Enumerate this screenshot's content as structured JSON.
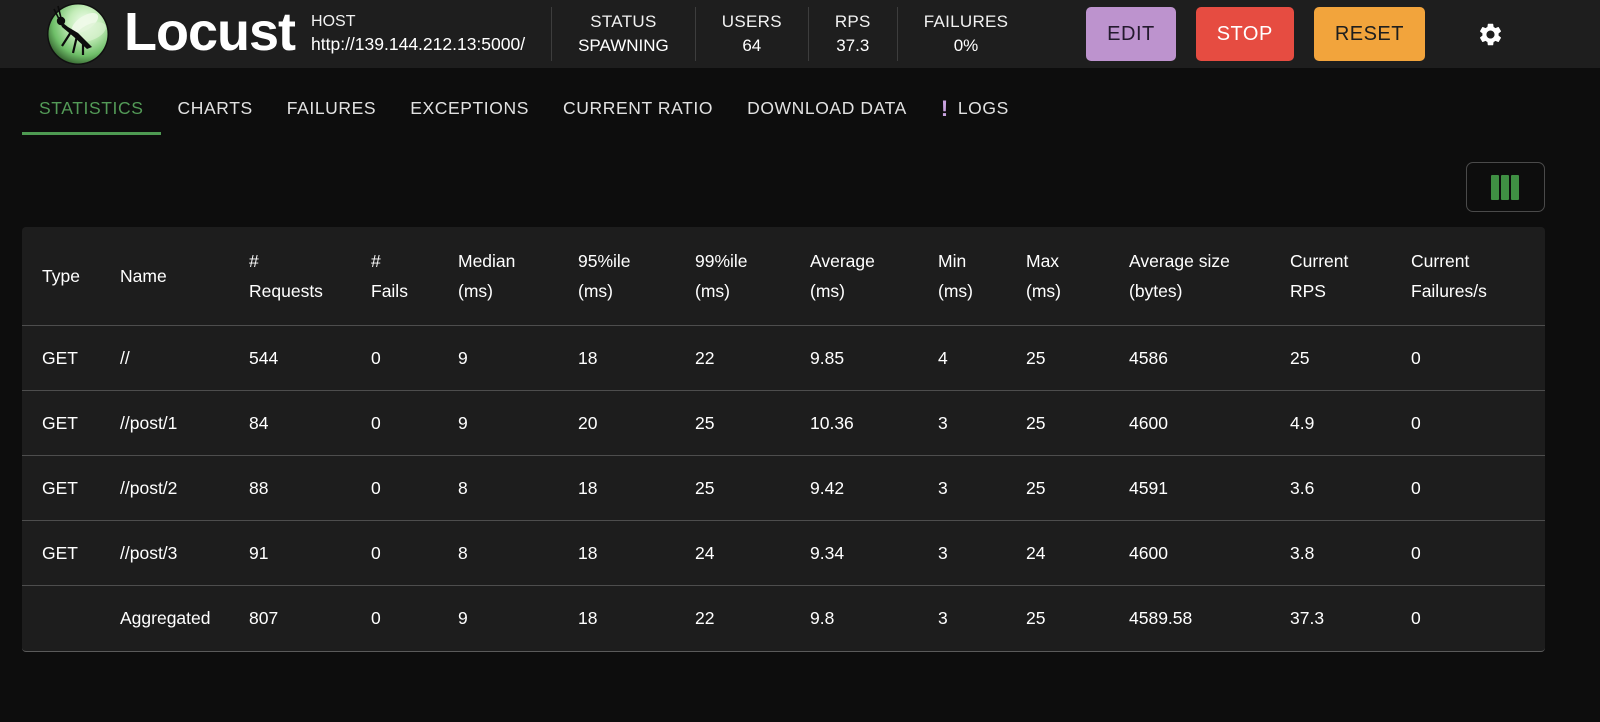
{
  "colors": {
    "accent_green": "#4e9a52",
    "edit_button_bg": "#bd93ce",
    "edit_button_fg": "#241a2e",
    "stop_button_bg": "#e64c41",
    "stop_button_fg": "#ffffff",
    "reset_button_bg": "#f2a43c",
    "reset_button_fg": "#1e1e1e",
    "logs_badge": "#c9a3e0",
    "columns_icon_green": "#3f8f43"
  },
  "header": {
    "logo_icon": "locust-logo",
    "title": "Locust",
    "host": {
      "label": "HOST",
      "value": "http://139.144.212.13:5000/"
    },
    "stats": [
      {
        "label": "STATUS",
        "value": "SPAWNING"
      },
      {
        "label": "USERS",
        "value": "64"
      },
      {
        "label": "RPS",
        "value": "37.3"
      },
      {
        "label": "FAILURES",
        "value": "0%"
      }
    ],
    "buttons": [
      {
        "label": "EDIT",
        "bg": "#bd93ce",
        "fg": "#241a2e",
        "name": "edit-button"
      },
      {
        "label": "STOP",
        "bg": "#e64c41",
        "fg": "#ffffff",
        "name": "stop-button"
      },
      {
        "label": "RESET",
        "bg": "#f2a43c",
        "fg": "#1e1e1e",
        "name": "reset-button"
      }
    ],
    "settings_icon": "gear-icon"
  },
  "tabs": [
    {
      "label": "STATISTICS",
      "active": true
    },
    {
      "label": "CHARTS",
      "active": false
    },
    {
      "label": "FAILURES",
      "active": false
    },
    {
      "label": "EXCEPTIONS",
      "active": false
    },
    {
      "label": "CURRENT RATIO",
      "active": false
    },
    {
      "label": "DOWNLOAD DATA",
      "active": false
    },
    {
      "label": "LOGS",
      "active": false,
      "badge": "!"
    }
  ],
  "toolbar": {
    "columns_icon": "view-columns-icon"
  },
  "table": {
    "columns": [
      {
        "line1": "Type",
        "line2": ""
      },
      {
        "line1": "Name",
        "line2": ""
      },
      {
        "line1": "#",
        "line2": "Requests"
      },
      {
        "line1": "#",
        "line2": "Fails"
      },
      {
        "line1": "Median",
        "line2": "(ms)"
      },
      {
        "line1": "95%ile",
        "line2": "(ms)"
      },
      {
        "line1": "99%ile",
        "line2": "(ms)"
      },
      {
        "line1": "Average",
        "line2": "(ms)"
      },
      {
        "line1": "Min",
        "line2": "(ms)"
      },
      {
        "line1": "Max",
        "line2": "(ms)"
      },
      {
        "line1": "Average size",
        "line2": "(bytes)"
      },
      {
        "line1": "Current",
        "line2": "RPS"
      },
      {
        "line1": "Current",
        "line2": "Failures/s"
      }
    ],
    "rows": [
      {
        "cells": [
          "GET",
          "//",
          "544",
          "0",
          "9",
          "18",
          "22",
          "9.85",
          "4",
          "25",
          "4586",
          "25",
          "0"
        ]
      },
      {
        "cells": [
          "GET",
          "//post/1",
          "84",
          "0",
          "9",
          "20",
          "25",
          "10.36",
          "3",
          "25",
          "4600",
          "4.9",
          "0"
        ]
      },
      {
        "cells": [
          "GET",
          "//post/2",
          "88",
          "0",
          "8",
          "18",
          "25",
          "9.42",
          "3",
          "25",
          "4591",
          "3.6",
          "0"
        ]
      },
      {
        "cells": [
          "GET",
          "//post/3",
          "91",
          "0",
          "8",
          "18",
          "24",
          "9.34",
          "3",
          "24",
          "4600",
          "3.8",
          "0"
        ]
      },
      {
        "cells": [
          "",
          "Aggregated",
          "807",
          "0",
          "9",
          "18",
          "22",
          "9.8",
          "3",
          "25",
          "4589.58",
          "37.3",
          "0"
        ]
      }
    ]
  }
}
